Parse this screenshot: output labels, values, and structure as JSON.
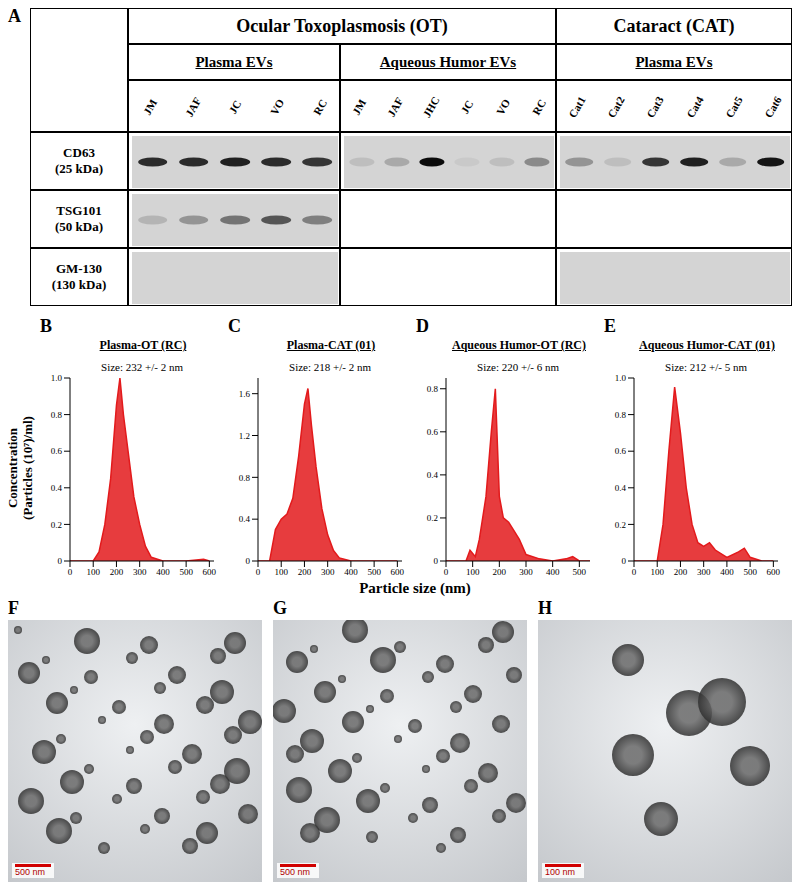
{
  "western_blot": {
    "panel": "A",
    "rows": [
      {
        "name": "CD63",
        "size": "(25 kDa)"
      },
      {
        "name": "TSG101",
        "size": "(50 kDa)"
      },
      {
        "name": "GM-130",
        "size": "(130 kDa)"
      }
    ],
    "groups": [
      {
        "title": "Ocular Toxoplasmosis (OT)",
        "columns": [
          {
            "title": "Plasma EVs",
            "lanes": [
              "JM",
              "JAF",
              "JC",
              "VO",
              "RC"
            ],
            "band_intensity": [
              [
                0.8,
                0.8,
                0.85,
                0.8,
                0.75
              ],
              [
                0.15,
                0.3,
                0.45,
                0.6,
                0.4
              ],
              [
                0,
                0,
                0,
                0,
                0
              ]
            ]
          },
          {
            "title": "Aqueous Humor EVs",
            "lanes": [
              "JM",
              "JAF",
              "JHC",
              "JC",
              "VO",
              "RC"
            ],
            "band_intensity": [
              [
                0.1,
                0.2,
                0.95,
                0.05,
                0.1,
                0.35
              ],
              null,
              null
            ]
          }
        ]
      },
      {
        "title": "Cataract (CAT)",
        "columns": [
          {
            "title": "Plasma EVs",
            "lanes": [
              "Cat1",
              "Cat2",
              "Cat3",
              "Cat4",
              "Cat5",
              "Cat6"
            ],
            "band_intensity": [
              [
                0.3,
                0.1,
                0.75,
                0.85,
                0.2,
                0.9
              ],
              null,
              [
                0,
                0,
                0,
                0,
                0,
                0
              ]
            ]
          }
        ]
      }
    ]
  },
  "x_label": "Particle size (nm)",
  "y_label": [
    "Concentration",
    "(Particles (10⁷)/ml)"
  ],
  "chart_data": [
    {
      "panel": "B",
      "type": "area",
      "title": "Plasma-OT (RC)",
      "annotation": "Size: 232 +/- 2 nm",
      "color": "#e31a1c",
      "x": [
        0,
        100,
        125,
        150,
        175,
        200,
        215,
        230,
        250,
        275,
        300,
        325,
        350,
        400,
        500,
        575,
        600
      ],
      "values": [
        0,
        0,
        0.05,
        0.2,
        0.45,
        0.85,
        1.0,
        0.8,
        0.6,
        0.35,
        0.2,
        0.08,
        0.02,
        0,
        0,
        0.01,
        0
      ],
      "xlim": [
        0,
        620
      ],
      "xticks": [
        0,
        100,
        200,
        300,
        400,
        500,
        600
      ],
      "ylim": [
        0,
        1.0
      ],
      "yticks": [
        0,
        0.2,
        0.4,
        0.6,
        0.8,
        {
          "value": 1,
          "label": "1.0"
        }
      ]
    },
    {
      "panel": "C",
      "type": "area",
      "title": "Plasma-CAT (01)",
      "annotation": "Size: 218 +/- 2 nm",
      "color": "#e31a1c",
      "x": [
        0,
        50,
        75,
        100,
        125,
        150,
        175,
        200,
        215,
        230,
        250,
        275,
        300,
        325,
        350,
        400,
        500,
        600
      ],
      "values": [
        0,
        0,
        0.3,
        0.4,
        0.45,
        0.6,
        1.0,
        1.5,
        1.65,
        1.3,
        0.9,
        0.5,
        0.25,
        0.1,
        0.03,
        0,
        0,
        0
      ],
      "xlim": [
        0,
        620
      ],
      "xticks": [
        0,
        100,
        200,
        300,
        400,
        500,
        600
      ],
      "ylim": [
        0,
        1.75
      ],
      "yticks": [
        0,
        0.4,
        0.8,
        1.2,
        1.6
      ]
    },
    {
      "panel": "D",
      "type": "area",
      "title": "Aqueous Humor-OT (RC)",
      "annotation": "Size: 220 +/- 6 nm",
      "color": "#e31a1c",
      "x": [
        0,
        75,
        90,
        110,
        125,
        150,
        170,
        185,
        200,
        215,
        235,
        250,
        275,
        300,
        350,
        400,
        450,
        475,
        500,
        540
      ],
      "values": [
        0,
        0,
        0.05,
        0.02,
        0.1,
        0.3,
        0.6,
        0.8,
        0.3,
        0.2,
        0.18,
        0.15,
        0.1,
        0.03,
        0.01,
        0,
        0.01,
        0.02,
        0,
        0
      ],
      "xlim": [
        0,
        540
      ],
      "xticks": [
        0,
        100,
        200,
        300,
        400,
        500
      ],
      "ylim": [
        0,
        0.85
      ],
      "yticks": [
        0,
        0.2,
        0.4,
        0.6,
        0.8
      ]
    },
    {
      "panel": "E",
      "type": "area",
      "title": "Aqueous Humor-CAT (01)",
      "annotation": "Size: 212 +/- 5 nm",
      "color": "#e31a1c",
      "x": [
        0,
        100,
        125,
        150,
        175,
        200,
        225,
        250,
        275,
        300,
        325,
        350,
        400,
        450,
        475,
        500,
        550,
        600
      ],
      "values": [
        0,
        0,
        0.2,
        0.6,
        0.95,
        0.7,
        0.4,
        0.2,
        0.1,
        0.08,
        0.1,
        0.06,
        0.02,
        0.05,
        0.07,
        0.02,
        0,
        0
      ],
      "xlim": [
        0,
        620
      ],
      "xticks": [
        0,
        100,
        200,
        300,
        400,
        500,
        600
      ],
      "ylim": [
        0,
        1.0
      ],
      "yticks": [
        0,
        0.2,
        0.4,
        0.6,
        0.8,
        {
          "value": 1,
          "label": "1.0"
        }
      ]
    }
  ],
  "images": [
    {
      "panel": "F",
      "scale_bar": "500 nm"
    },
    {
      "panel": "G",
      "scale_bar": "500 nm"
    },
    {
      "panel": "H",
      "scale_bar": "100 nm"
    }
  ]
}
